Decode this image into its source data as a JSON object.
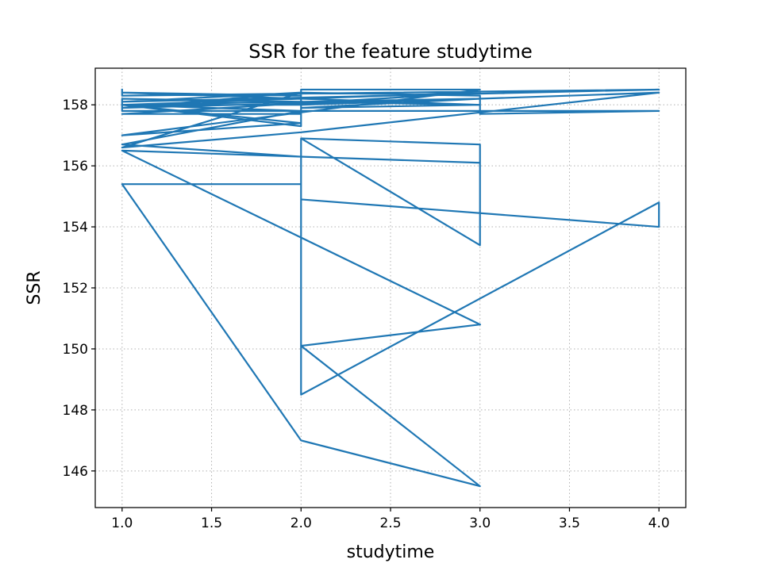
{
  "chart_data": {
    "type": "line",
    "title": "SSR for the feature studytime",
    "xlabel": "studytime",
    "ylabel": "SSR",
    "xlim": [
      0.85,
      4.15
    ],
    "ylim": [
      144.8,
      159.2
    ],
    "xticks": [
      1.0,
      1.5,
      2.0,
      2.5,
      3.0,
      3.5,
      4.0
    ],
    "xtick_labels": [
      "1.0",
      "1.5",
      "2.0",
      "2.5",
      "3.0",
      "3.5",
      "4.0"
    ],
    "yticks": [
      146,
      148,
      150,
      152,
      154,
      156,
      158
    ],
    "ytick_labels": [
      "146",
      "148",
      "150",
      "152",
      "154",
      "156",
      "158"
    ],
    "grid": true,
    "color": "#1f77b4",
    "series": [
      {
        "points": [
          [
            1.0,
            158.5
          ],
          [
            1.0,
            158.3
          ],
          [
            4.0,
            158.5
          ],
          [
            1.0,
            158.1
          ],
          [
            2.0,
            158.4
          ],
          [
            1.0,
            157.9
          ],
          [
            3.0,
            158.2
          ],
          [
            1.0,
            158.0
          ],
          [
            3.0,
            158.4
          ],
          [
            1.0,
            157.7
          ],
          [
            2.0,
            157.7
          ],
          [
            2.0,
            158.5
          ],
          [
            3.0,
            158.5
          ],
          [
            1.0,
            157.0
          ],
          [
            2.0,
            157.4
          ],
          [
            1.0,
            158.0
          ],
          [
            2.0,
            158.0
          ],
          [
            4.0,
            158.4
          ],
          [
            2.0,
            157.1
          ],
          [
            1.0,
            156.6
          ],
          [
            2.0,
            158.4
          ],
          [
            3.0,
            158.3
          ],
          [
            3.0,
            158.0
          ],
          [
            2.0,
            157.9
          ],
          [
            3.0,
            158.2
          ],
          [
            3.0,
            157.7
          ],
          [
            4.0,
            157.8
          ],
          [
            1.0,
            157.8
          ],
          [
            1.0,
            158.2
          ],
          [
            3.0,
            158.0
          ],
          [
            1.0,
            158.4
          ],
          [
            2.0,
            158.3
          ],
          [
            2.0,
            157.3
          ],
          [
            1.0,
            158.0
          ],
          [
            2.0,
            157.8
          ],
          [
            1.0,
            156.7
          ],
          [
            2.0,
            156.3
          ],
          [
            3.0,
            156.1
          ],
          [
            1.0,
            156.5
          ],
          [
            3.0,
            150.8
          ],
          [
            2.0,
            150.1
          ],
          [
            2.0,
            156.9
          ],
          [
            3.0,
            153.4
          ],
          [
            3.0,
            156.7
          ],
          [
            2.0,
            156.9
          ],
          [
            2.0,
            154.9
          ],
          [
            4.0,
            154.0
          ],
          [
            4.0,
            154.8
          ],
          [
            2.0,
            148.5
          ],
          [
            2.0,
            155.4
          ],
          [
            1.0,
            155.4
          ],
          [
            2.0,
            147.0
          ],
          [
            3.0,
            145.5
          ],
          [
            2.0,
            150.1
          ],
          [
            3.0,
            150.8
          ]
        ]
      }
    ]
  }
}
